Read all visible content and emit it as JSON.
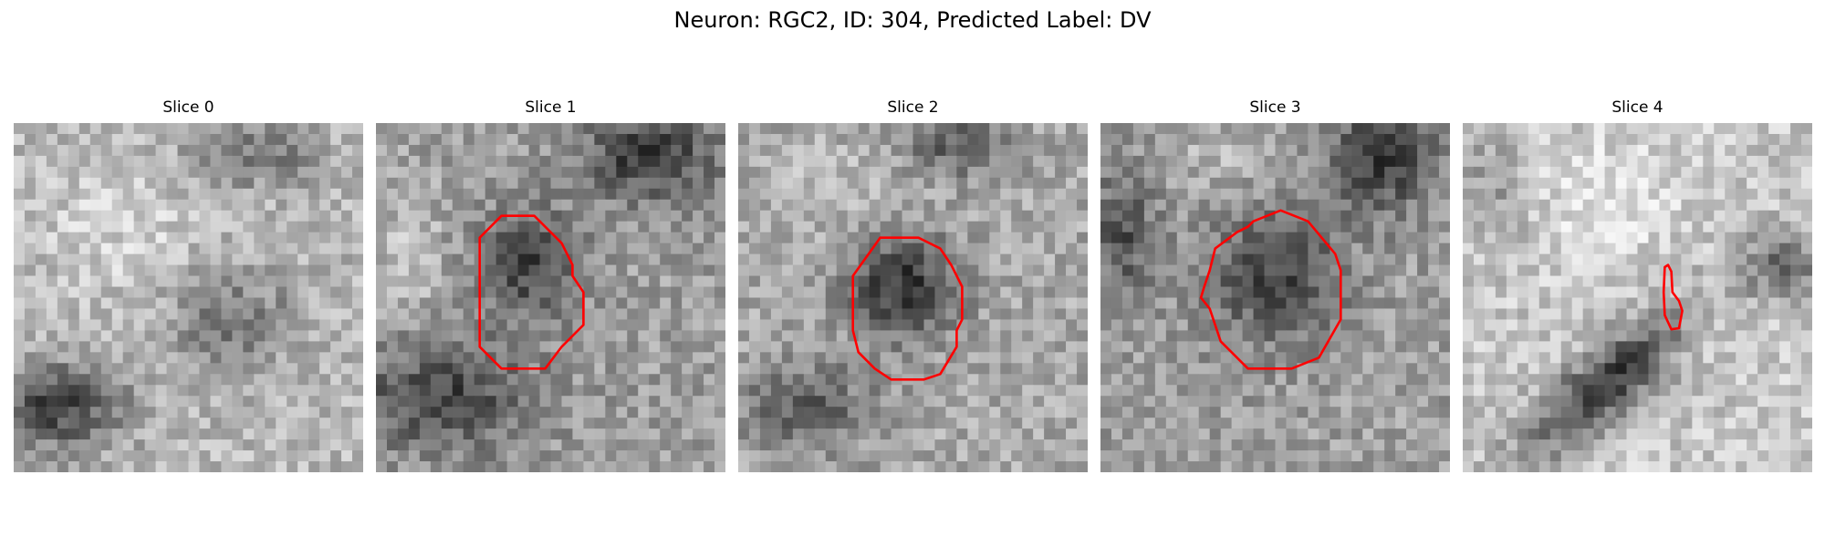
{
  "figure": {
    "title": "Neuron: RGC2, ID: 304, Predicted Label: DV"
  },
  "panels": [
    {
      "title": "Slice 0",
      "seed": 11
    },
    {
      "title": "Slice 1",
      "seed": 23
    },
    {
      "title": "Slice 2",
      "seed": 37
    },
    {
      "title": "Slice 3",
      "seed": 53
    },
    {
      "title": "Slice 4",
      "seed": 71
    }
  ],
  "colors": {
    "background": "#ffffff",
    "contour": "#ff0000",
    "colormap": "gray"
  }
}
